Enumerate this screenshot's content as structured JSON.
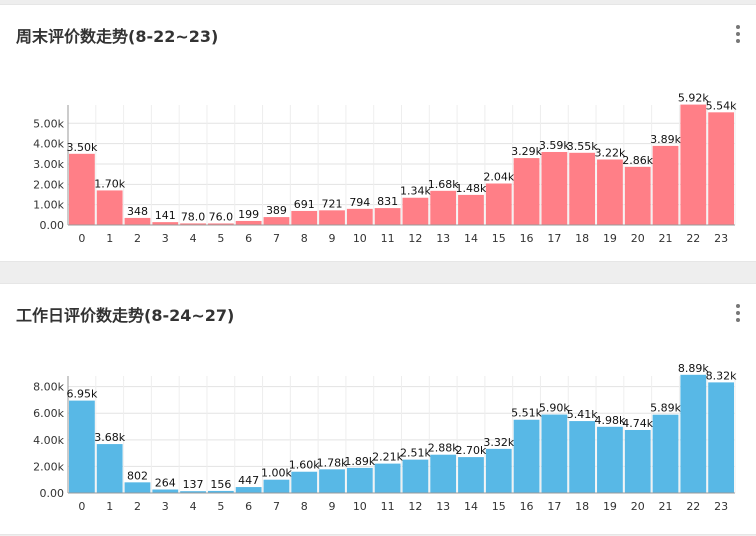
{
  "panels": [
    {
      "title": "周末评价数走势(8-22~23)"
    },
    {
      "title": "工作日评价数走势(8-24~27)"
    }
  ],
  "colors": {
    "weekend": "#ff7f87",
    "weekday": "#58b8e6"
  },
  "chart_data": [
    {
      "type": "bar",
      "title": "周末评价数走势(8-22~23)",
      "categories": [
        "0",
        "1",
        "2",
        "3",
        "4",
        "5",
        "6",
        "7",
        "8",
        "9",
        "10",
        "11",
        "12",
        "13",
        "14",
        "15",
        "16",
        "17",
        "18",
        "19",
        "20",
        "21",
        "22",
        "23"
      ],
      "values": [
        3500,
        1700,
        348,
        141,
        78,
        76,
        199,
        389,
        691,
        721,
        794,
        831,
        1340,
        1680,
        1480,
        2040,
        3290,
        3590,
        3550,
        3220,
        2860,
        3890,
        5920,
        5540
      ],
      "data_labels": [
        "3.50k",
        "1.70k",
        "348",
        "141",
        "78.0",
        "76.0",
        "199",
        "389",
        "691",
        "721",
        "794",
        "831",
        "1.34k",
        "1.68k",
        "1.48k",
        "2.04k",
        "3.29k",
        "3.59k",
        "3.55k",
        "3.22k",
        "2.86k",
        "3.89k",
        "5.92k",
        "5.54k"
      ],
      "ylim": [
        0,
        5900
      ],
      "yticks": [
        0,
        1000,
        2000,
        3000,
        4000,
        5000
      ],
      "ytick_labels": [
        "0.00",
        "1.00k",
        "2.00k",
        "3.00k",
        "4.00k",
        "5.00k"
      ],
      "grid": true,
      "xlabel": "",
      "ylabel": ""
    },
    {
      "type": "bar",
      "title": "工作日评价数走势(8-24~27)",
      "categories": [
        "0",
        "1",
        "2",
        "3",
        "4",
        "5",
        "6",
        "7",
        "8",
        "9",
        "10",
        "11",
        "12",
        "13",
        "14",
        "15",
        "16",
        "17",
        "18",
        "19",
        "20",
        "21",
        "22",
        "23"
      ],
      "values": [
        6950,
        3680,
        802,
        264,
        137,
        156,
        447,
        1000,
        1600,
        1780,
        1890,
        2210,
        2510,
        2880,
        2700,
        3320,
        5510,
        5900,
        5410,
        4980,
        4740,
        5890,
        8890,
        8320
      ],
      "data_labels": [
        "6.95k",
        "3.68k",
        "802",
        "264",
        "137",
        "156",
        "447",
        "1.00k",
        "1.60k",
        "1.78k",
        "1.89k",
        "2.21k",
        "2.51k",
        "2.88k",
        "2.70k",
        "3.32k",
        "5.51k",
        "5.90k",
        "5.41k",
        "4.98k",
        "4.74k",
        "5.89k",
        "8.89k",
        "8.32k"
      ],
      "ylim": [
        0,
        8800
      ],
      "yticks": [
        0,
        2000,
        4000,
        6000,
        8000
      ],
      "ytick_labels": [
        "0.00",
        "2.00k",
        "4.00k",
        "6.00k",
        "8.00k"
      ],
      "grid": true,
      "xlabel": "",
      "ylabel": ""
    }
  ]
}
